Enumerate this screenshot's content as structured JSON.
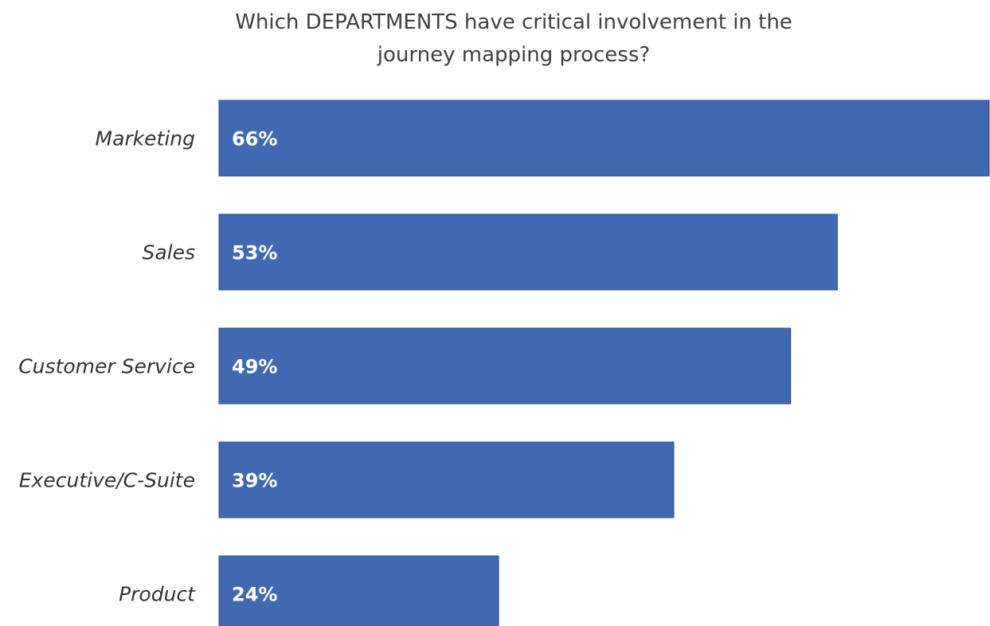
{
  "chart_data": {
    "type": "bar",
    "orientation": "horizontal",
    "title_lines": [
      "Which DEPARTMENTS have critical involvement in the",
      "journey mapping process?"
    ],
    "categories": [
      "Marketing",
      "Sales",
      "Customer Service",
      "Executive/C-Suite",
      "Product"
    ],
    "values": [
      66,
      53,
      49,
      39,
      24
    ],
    "value_labels": [
      "66%",
      "53%",
      "49%",
      "39%",
      "24%"
    ],
    "unit": "%",
    "xlim": [
      0,
      66
    ],
    "grid": false,
    "legend": "none",
    "colors": {
      "bar": "#4169b1",
      "bar_stroke": "#2f4f8a",
      "value_label": "#ffffff",
      "category_label": "#333333",
      "title": "#404040"
    }
  }
}
